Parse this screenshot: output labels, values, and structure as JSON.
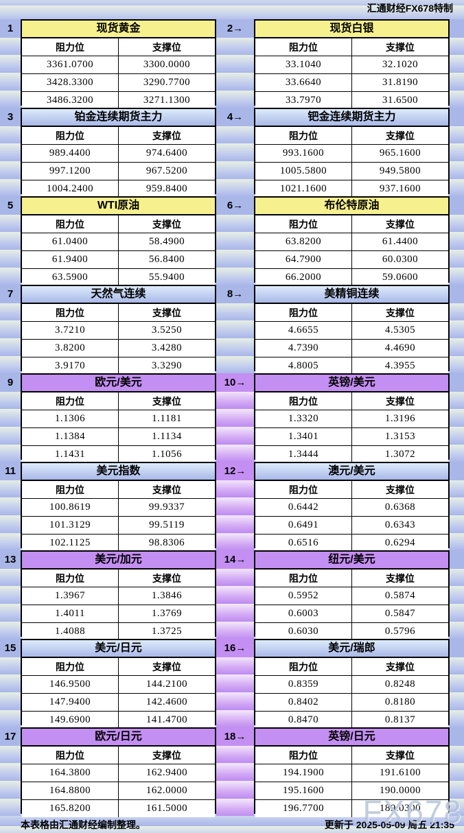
{
  "credit": "汇通财经FX678特制",
  "watermark": "FX678",
  "footer": {
    "left": "本表格由汇通财经编制整理。",
    "right": "更新于 2025-05-09 周五 21:35"
  },
  "columns": {
    "resistance": "阻力位",
    "support": "支撑位"
  },
  "colors": {
    "header_yellow": "#f7f08e",
    "header_blue_top": "#ddebfb",
    "header_blue_bottom": "#a9b9e8",
    "header_purple": "#c48ff2",
    "stripe_blue": "#a9b6e8",
    "stripe_pale": "#e7efe4"
  },
  "rows": [
    {
      "spacer_theme": "blue",
      "left": {
        "index": "1",
        "title": "现货黄金",
        "theme": "yellow",
        "resistance": [
          "3361.0700",
          "3428.3300",
          "3486.3200"
        ],
        "support": [
          "3300.0000",
          "3290.7700",
          "3271.1300"
        ]
      },
      "right": {
        "index": "2→",
        "title": "现货白银",
        "theme": "yellow",
        "resistance": [
          "33.1040",
          "33.6640",
          "33.7970"
        ],
        "support": [
          "32.1020",
          "31.8190",
          "31.6500"
        ]
      }
    },
    {
      "spacer_theme": "blue",
      "left": {
        "index": "3",
        "title": "铂金连续期货主力",
        "theme": "blue",
        "resistance": [
          "989.4400",
          "997.1200",
          "1004.2400"
        ],
        "support": [
          "974.6400",
          "967.5200",
          "959.8400"
        ]
      },
      "right": {
        "index": "4→",
        "title": "钯金连续期货主力",
        "theme": "blue",
        "resistance": [
          "993.1600",
          "1005.5800",
          "1021.1600"
        ],
        "support": [
          "965.1600",
          "949.5800",
          "937.1600"
        ]
      }
    },
    {
      "spacer_theme": "blue",
      "left": {
        "index": "5",
        "title": "WTI原油",
        "theme": "yellow",
        "resistance": [
          "61.0400",
          "61.9400",
          "63.5900"
        ],
        "support": [
          "58.4900",
          "56.8400",
          "55.9400"
        ]
      },
      "right": {
        "index": "6→",
        "title": "布伦特原油",
        "theme": "yellow",
        "resistance": [
          "63.8200",
          "64.7900",
          "66.2000"
        ],
        "support": [
          "61.4400",
          "60.0300",
          "59.0600"
        ]
      }
    },
    {
      "spacer_theme": "blue",
      "left": {
        "index": "7",
        "title": "天然气连续",
        "theme": "blue",
        "resistance": [
          "3.7210",
          "3.8200",
          "3.9170"
        ],
        "support": [
          "3.5250",
          "3.4280",
          "3.3290"
        ]
      },
      "right": {
        "index": "8→",
        "title": "美精铜连续",
        "theme": "blue",
        "resistance": [
          "4.6655",
          "4.7390",
          "4.8005"
        ],
        "support": [
          "4.5305",
          "4.4690",
          "4.3955"
        ]
      }
    },
    {
      "spacer_theme": "purple",
      "left": {
        "index": "9",
        "title": "欧元/美元",
        "theme": "purple",
        "resistance": [
          "1.1306",
          "1.1384",
          "1.1431"
        ],
        "support": [
          "1.1181",
          "1.1134",
          "1.1056"
        ]
      },
      "right": {
        "index": "10→",
        "title": "英镑/美元",
        "theme": "purple",
        "resistance": [
          "1.3320",
          "1.3401",
          "1.3444"
        ],
        "support": [
          "1.3196",
          "1.3153",
          "1.3072"
        ]
      }
    },
    {
      "spacer_theme": "purple",
      "left": {
        "index": "11",
        "title": "美元指数",
        "theme": "blue",
        "resistance": [
          "100.8619",
          "101.3129",
          "102.1125"
        ],
        "support": [
          "99.9337",
          "99.5119",
          "98.8306"
        ]
      },
      "right": {
        "index": "12→",
        "title": "澳元/美元",
        "theme": "blue",
        "resistance": [
          "0.6442",
          "0.6491",
          "0.6516"
        ],
        "support": [
          "0.6368",
          "0.6343",
          "0.6294"
        ]
      }
    },
    {
      "spacer_theme": "purple",
      "left": {
        "index": "13",
        "title": "美元/加元",
        "theme": "purple",
        "resistance": [
          "1.3967",
          "1.4011",
          "1.4088"
        ],
        "support": [
          "1.3846",
          "1.3769",
          "1.3725"
        ]
      },
      "right": {
        "index": "14→",
        "title": "纽元/美元",
        "theme": "purple",
        "resistance": [
          "0.5952",
          "0.6003",
          "0.6030"
        ],
        "support": [
          "0.5874",
          "0.5847",
          "0.5796"
        ]
      }
    },
    {
      "spacer_theme": "purple",
      "left": {
        "index": "15",
        "title": "美元/日元",
        "theme": "blue",
        "resistance": [
          "146.9500",
          "147.9400",
          "149.6900"
        ],
        "support": [
          "144.2100",
          "142.4600",
          "141.4700"
        ]
      },
      "right": {
        "index": "16→",
        "title": "美元/瑞郎",
        "theme": "blue",
        "resistance": [
          "0.8359",
          "0.8402",
          "0.8470"
        ],
        "support": [
          "0.8248",
          "0.8180",
          "0.8137"
        ]
      }
    },
    {
      "spacer_theme": "purple",
      "left": {
        "index": "17",
        "title": "欧元/日元",
        "theme": "purple",
        "resistance": [
          "164.3800",
          "164.8800",
          "165.8200"
        ],
        "support": [
          "162.9400",
          "162.0000",
          "161.5000"
        ]
      },
      "right": {
        "index": "18→",
        "title": "英镑/日元",
        "theme": "purple",
        "resistance": [
          "194.1900",
          "195.1600",
          "196.7700"
        ],
        "support": [
          "191.6100",
          "190.0000",
          "189.0300"
        ]
      }
    }
  ]
}
